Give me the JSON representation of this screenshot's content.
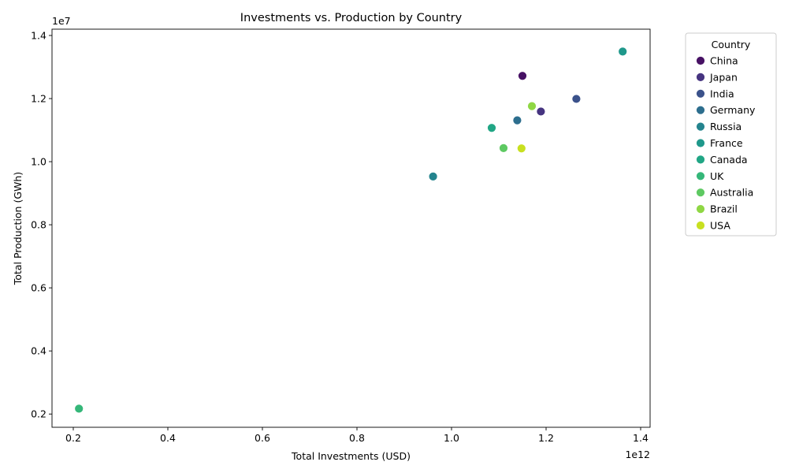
{
  "chart_data": {
    "type": "scatter",
    "title": "Investments vs. Production by Country",
    "xlabel": "Total Investments (USD)",
    "ylabel": "Total Production (GWh)",
    "x_offset_text": "1e12",
    "y_offset_text": "1e7",
    "xlim": [
      0.155,
      1.42
    ],
    "ylim": [
      0.158,
      1.42
    ],
    "x_ticks": [
      "0.2",
      "0.4",
      "0.6",
      "0.8",
      "1.0",
      "1.2",
      "1.4"
    ],
    "y_ticks": [
      "0.2",
      "0.4",
      "0.6",
      "0.8",
      "1.0",
      "1.2",
      "1.4"
    ],
    "legend_title": "Country",
    "legend_position": "outside-right",
    "grid": false,
    "series": [
      {
        "name": "China",
        "color": "#471164",
        "x": 1.15,
        "y": 1.272
      },
      {
        "name": "Japan",
        "color": "#463480",
        "x": 1.189,
        "y": 1.159
      },
      {
        "name": "India",
        "color": "#3b528b",
        "x": 1.264,
        "y": 1.199
      },
      {
        "name": "Germany",
        "color": "#2d6e8e",
        "x": 1.139,
        "y": 1.131
      },
      {
        "name": "Russia",
        "color": "#24848e",
        "x": 0.961,
        "y": 0.953
      },
      {
        "name": "France",
        "color": "#1f988b",
        "x": 1.362,
        "y": 1.349
      },
      {
        "name": "Canada",
        "color": "#21a685",
        "x": 1.085,
        "y": 1.107
      },
      {
        "name": "UK",
        "color": "#35b779",
        "x": 0.212,
        "y": 0.217
      },
      {
        "name": "Australia",
        "color": "#5ec962",
        "x": 1.11,
        "y": 1.043
      },
      {
        "name": "Brazil",
        "color": "#8fd744",
        "x": 1.17,
        "y": 1.176
      },
      {
        "name": "USA",
        "color": "#c8e020",
        "x": 1.148,
        "y": 1.042
      }
    ]
  }
}
